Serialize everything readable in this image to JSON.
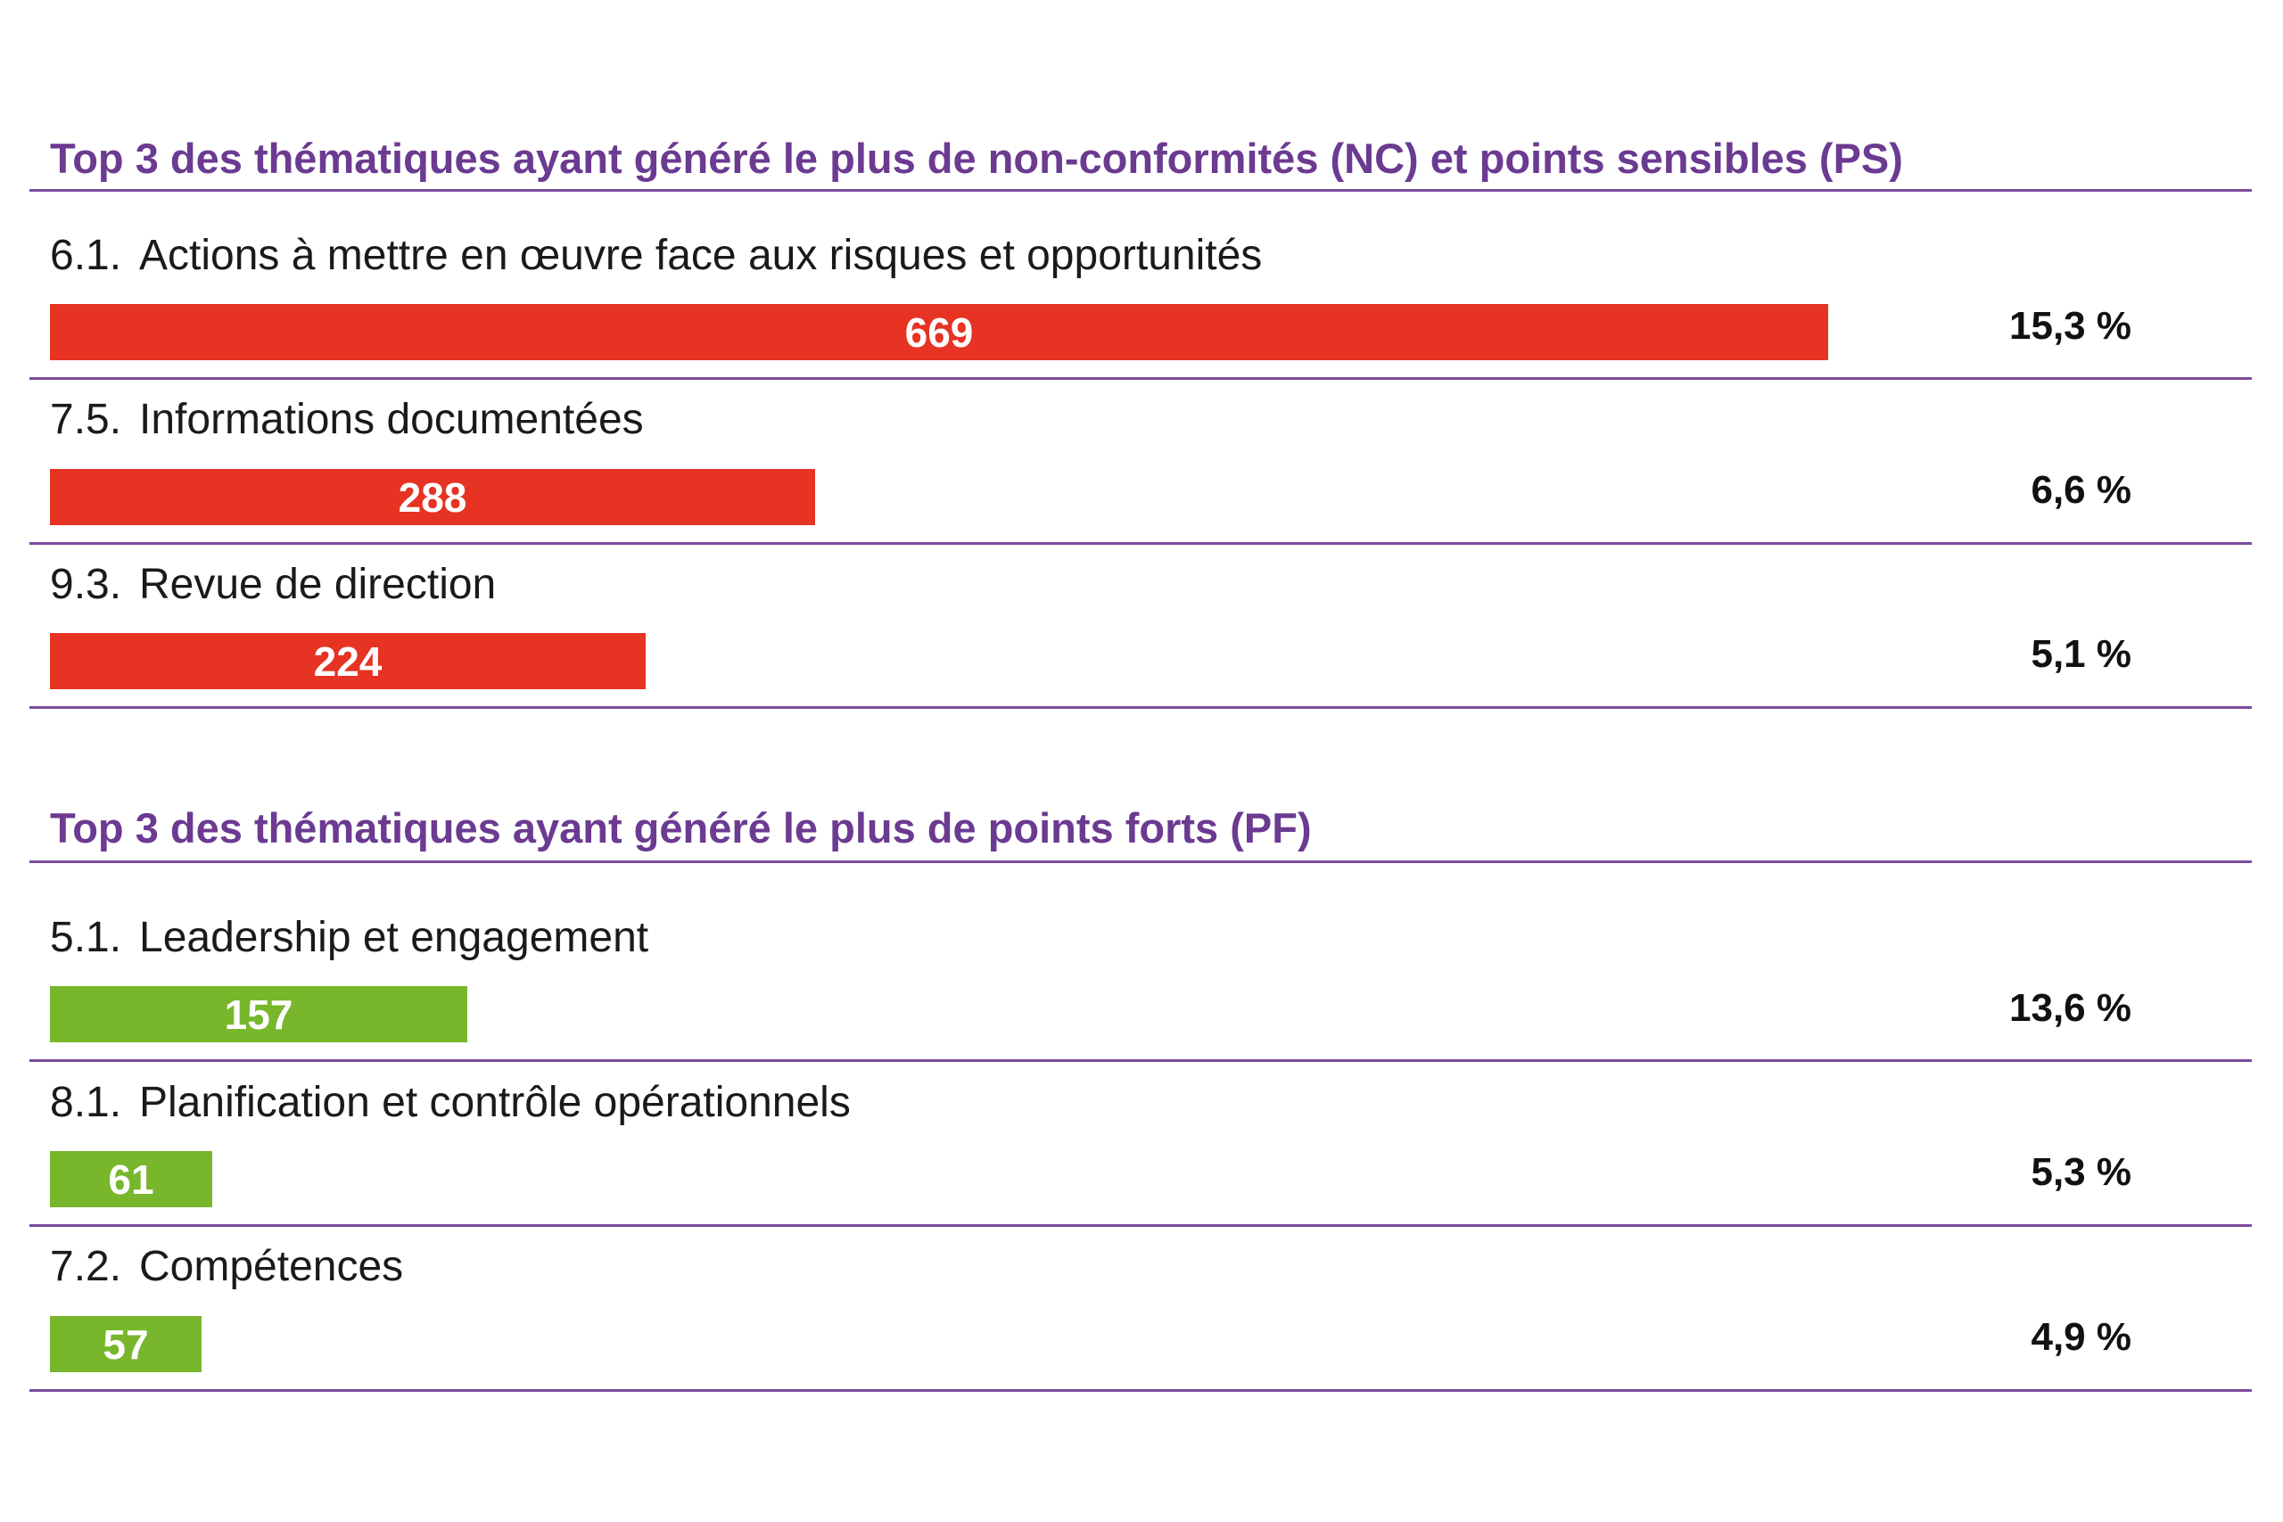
{
  "chart_data": [
    {
      "type": "bar",
      "title": "Top 3 des thématiques ayant généré le plus de non-conformités (NC) et points sensibles (PS)",
      "bar_color": "#e63323",
      "axis_max": 669,
      "rows": [
        {
          "code": "6.1.",
          "label": "Actions à mettre en œuvre face aux risques et opportunités",
          "value": 669,
          "value_label": "669",
          "percent": 15.3,
          "percent_label": "15,3 %"
        },
        {
          "code": "7.5.",
          "label": "Informations documentées",
          "value": 288,
          "value_label": "288",
          "percent": 6.6,
          "percent_label": "6,6 %"
        },
        {
          "code": "9.3.",
          "label": "Revue de direction",
          "value": 224,
          "value_label": "224",
          "percent": 5.1,
          "percent_label": "5,1 %"
        }
      ]
    },
    {
      "type": "bar",
      "title": "Top 3 des thématiques ayant généré le plus de points forts (PF)",
      "bar_color": "#78b62c",
      "axis_max": 669,
      "rows": [
        {
          "code": "5.1.",
          "label": "Leadership et engagement",
          "value": 157,
          "value_label": "157",
          "percent": 13.6,
          "percent_label": "13,6 %"
        },
        {
          "code": "8.1.",
          "label": "Planification et contrôle opérationnels",
          "value": 61,
          "value_label": "61",
          "percent": 5.3,
          "percent_label": "5,3 %"
        },
        {
          "code": "7.2.",
          "label": "Compétences",
          "value": 57,
          "value_label": "57",
          "percent": 4.9,
          "percent_label": "4,9 %"
        }
      ]
    }
  ],
  "colors": {
    "title": "#6b3a91",
    "rule": "#7a4b9e",
    "nc_bar": "#e63323",
    "pf_bar": "#78b62c"
  }
}
